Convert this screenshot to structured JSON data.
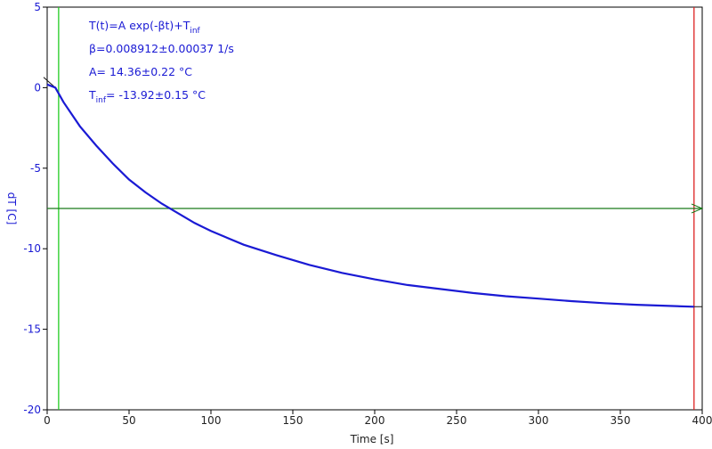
{
  "chart_data": {
    "type": "line",
    "title": "",
    "xlabel": "Time [s]",
    "ylabel": "dT [C]",
    "xlim": [
      0,
      400
    ],
    "ylim": [
      -20,
      5
    ],
    "x_ticks": [
      0,
      50,
      100,
      150,
      200,
      250,
      300,
      350,
      400
    ],
    "y_ticks": [
      5,
      0,
      -5,
      -10,
      -15,
      -20
    ],
    "grid": false,
    "legend": "none",
    "fit_params": {
      "formula_main": "T(t)=A exp(-βt)+T",
      "formula_sub": "inf",
      "beta": "β=0.008912±0.00037 1/s",
      "A": "A= 14.36±0.22 °C",
      "tinf_main": "T",
      "tinf_sub": "inf",
      "tinf_rest": "= -13.92±0.15 °C"
    },
    "series": [
      {
        "x": [
          0,
          5,
          10,
          20,
          30,
          40,
          50,
          60,
          70,
          80,
          90,
          100,
          120,
          140,
          160,
          180,
          200,
          220,
          240,
          260,
          280,
          300,
          320,
          340,
          360,
          380,
          395
        ],
        "y": [
          0.2,
          0.0,
          -0.9,
          -2.4,
          -3.6,
          -4.7,
          -5.7,
          -6.5,
          -7.2,
          -7.8,
          -8.4,
          -8.9,
          -9.75,
          -10.4,
          -11.0,
          -11.5,
          -11.9,
          -12.25,
          -12.5,
          -12.75,
          -12.95,
          -13.1,
          -13.25,
          -13.38,
          -13.48,
          -13.55,
          -13.6
        ],
        "color": "#1a1ad4"
      }
    ],
    "markers": {
      "vline_green_x": 7,
      "vline_red_x": 395,
      "hline_green_y": -7.5,
      "line_color_green": "#22cc22",
      "line_color_darkgreen": "#1a7a1a",
      "line_color_red": "#dd2222"
    }
  }
}
